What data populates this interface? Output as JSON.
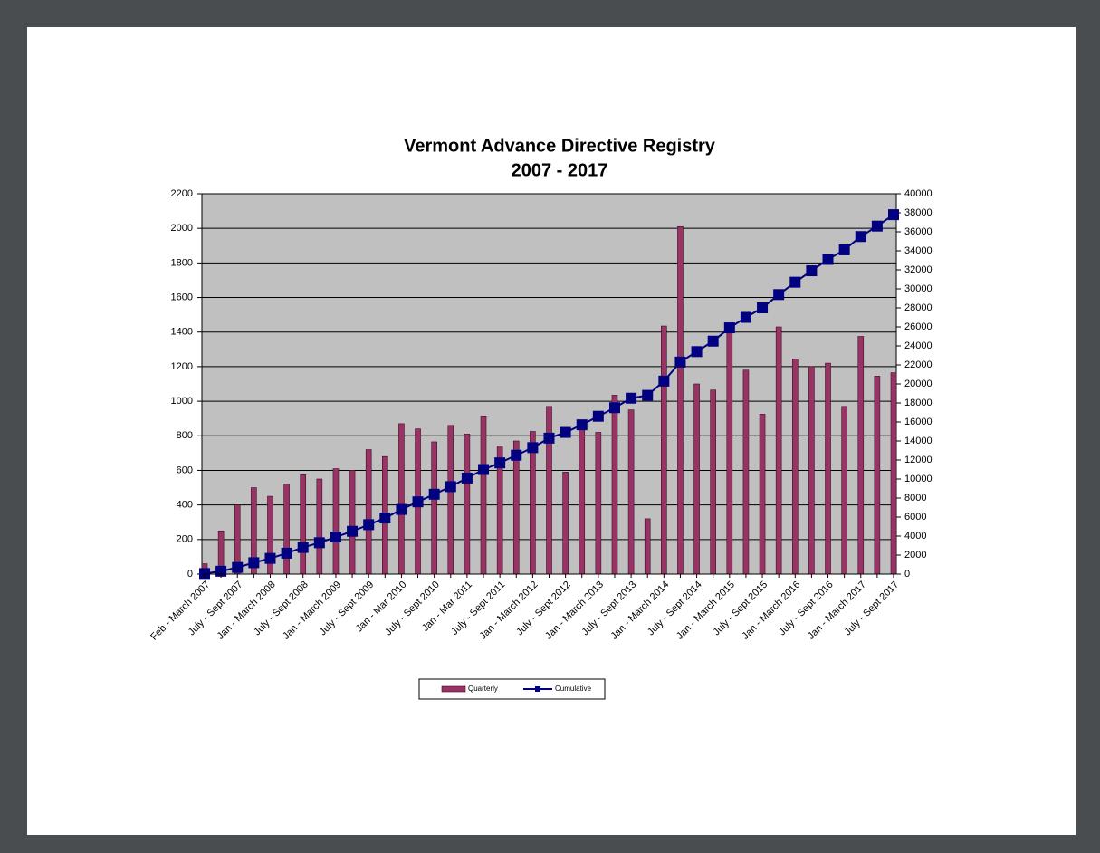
{
  "chart_data": {
    "type": "bar-line",
    "title": "Vermont Advance Directive Registry",
    "subtitle": "2007 - 2017",
    "categories": [
      "Feb - March 2007",
      null,
      "July - Sept 2007",
      null,
      "Jan - March 2008",
      null,
      "July - Sept 2008",
      null,
      "Jan - March 2009",
      null,
      "July - Sept 2009",
      null,
      "Jan - Mar 2010",
      null,
      "July - Sept 2010",
      null,
      "Jan - Mar 2011",
      null,
      "July - Sept 2011",
      null,
      "Jan - March 2012",
      null,
      "July - Sept 2012",
      null,
      "Jan - March 2013",
      null,
      "July - Sept 2013",
      null,
      "Jan - March 2014",
      null,
      "July - Sept 2014",
      null,
      "Jan - March 2015",
      null,
      "July - Sept 2015",
      null,
      "Jan - March 2016",
      null,
      "July - Sept 2016",
      null,
      "Jan - March 2017",
      null,
      "July - Sept 2017"
    ],
    "series": [
      {
        "name": "Quarterly",
        "color": "#993366",
        "values": [
          60,
          250,
          400,
          500,
          450,
          520,
          575,
          550,
          610,
          600,
          720,
          680,
          870,
          840,
          765,
          860,
          810,
          915,
          740,
          770,
          825,
          970,
          590,
          840,
          820,
          1035,
          950,
          320,
          1435,
          2010,
          1100,
          1065,
          1420,
          1180,
          925,
          1430,
          1245,
          1200,
          1220,
          970,
          1375,
          1145,
          1165
        ]
      },
      {
        "name": "Cumulative",
        "color": "#000080",
        "axis": "y2",
        "values": [
          60,
          300,
          700,
          1200,
          1650,
          2200,
          2800,
          3300,
          3900,
          4500,
          5200,
          5900,
          6800,
          7600,
          8400,
          9200,
          10100,
          11000,
          11700,
          12500,
          13300,
          14300,
          14900,
          15700,
          16600,
          17500,
          18500,
          18800,
          20300,
          22300,
          23400,
          24500,
          25900,
          27000,
          28000,
          29400,
          30700,
          31900,
          33100,
          34100,
          35500,
          36600,
          37800
        ]
      }
    ],
    "ylim": [
      0,
      2200
    ],
    "yticks": [
      0,
      200,
      400,
      600,
      800,
      1000,
      1200,
      1400,
      1600,
      1800,
      2000,
      2200
    ],
    "y2lim": [
      0,
      40000
    ],
    "y2ticks": [
      0,
      2000,
      4000,
      6000,
      8000,
      10000,
      12000,
      14000,
      16000,
      18000,
      20000,
      22000,
      24000,
      26000,
      28000,
      30000,
      32000,
      34000,
      36000,
      38000,
      40000
    ],
    "grid": true,
    "legend": "bottom"
  }
}
